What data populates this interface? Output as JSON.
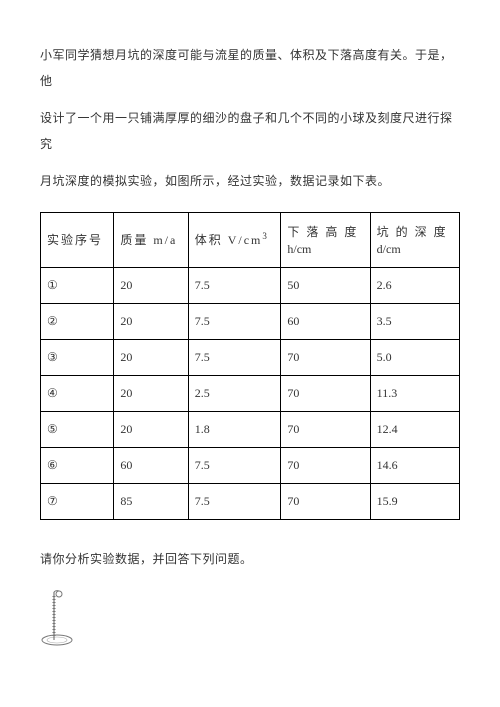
{
  "paragraphs": {
    "p1": "小军同学猜想月坑的深度可能与流星的质量、体积及下落高度有关。于是，他",
    "p2": "设计了一个用一只铺满厚厚的细沙的盘子和几个不同的小球及刻度尺进行探究",
    "p3": "月坑深度的模拟实验，如图所示，经过实验，数据记录如下表。",
    "p4": "请你分析实验数据，并回答下列问题。"
  },
  "table": {
    "headers": {
      "col1": "实验序号",
      "col2": "质量 m/a",
      "col3_a": "体积 V/cm",
      "col3_sup": "3",
      "col4_a": "下 落 高 度",
      "col4_b": "h/cm",
      "col5_a": "坑 的 深 度",
      "col5_b": "d/cm"
    },
    "rows": [
      {
        "n": "①",
        "m": "20",
        "v": "7.5",
        "h": "50",
        "d": "2.6"
      },
      {
        "n": "②",
        "m": "20",
        "v": "7.5",
        "h": "60",
        "d": "3.5"
      },
      {
        "n": "③",
        "m": "20",
        "v": "7.5",
        "h": "70",
        "d": "5.0"
      },
      {
        "n": "④",
        "m": "20",
        "v": "2.5",
        "h": "70",
        "d": "11.3"
      },
      {
        "n": "⑤",
        "m": "20",
        "v": "1.8",
        "h": "70",
        "d": "12.4"
      },
      {
        "n": "⑥",
        "m": "60",
        "v": "7.5",
        "h": "70",
        "d": "14.6"
      },
      {
        "n": "⑦",
        "m": "85",
        "v": "7.5",
        "h": "70",
        "d": "15.9"
      }
    ]
  },
  "colors": {
    "text": "#333333",
    "border": "#000000",
    "bg": "#ffffff",
    "figure": "#888888"
  }
}
